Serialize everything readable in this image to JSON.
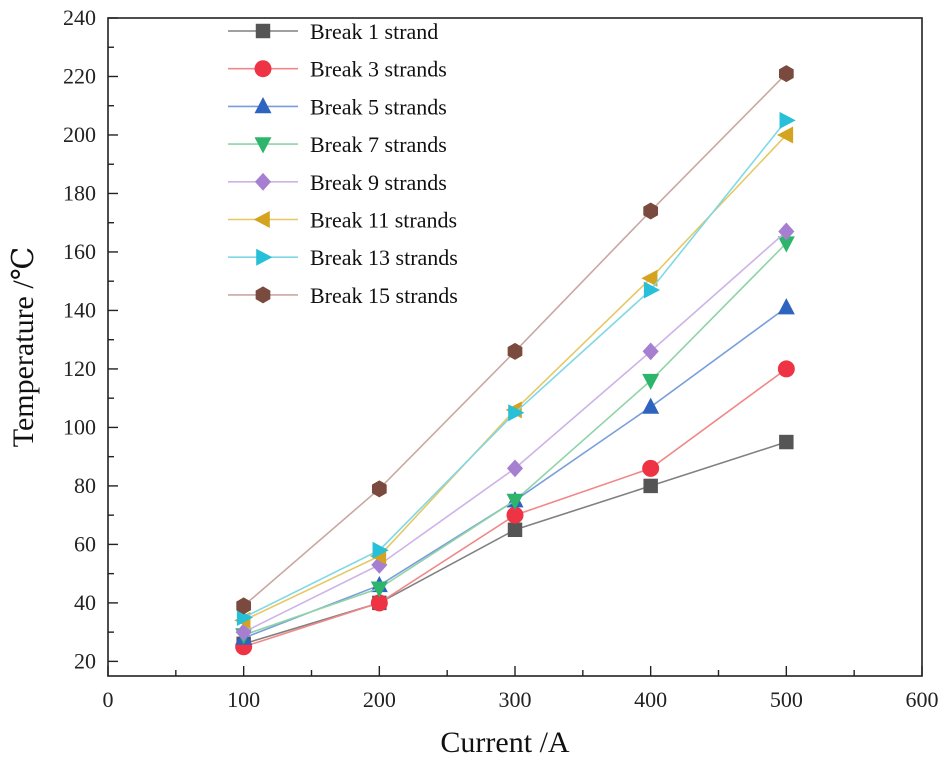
{
  "chart_data": {
    "type": "line",
    "title": "",
    "xlabel": "Current /A",
    "ylabel": "Temperature /℃",
    "xlim": [
      0,
      600
    ],
    "ylim": [
      15,
      240
    ],
    "x_ticks": [
      0,
      100,
      200,
      300,
      400,
      500,
      600
    ],
    "y_ticks": [
      20,
      40,
      60,
      80,
      100,
      120,
      140,
      160,
      180,
      200,
      220,
      240
    ],
    "grid": false,
    "legend_position": "top-left",
    "x": [
      100,
      200,
      300,
      400,
      500
    ],
    "series": [
      {
        "name": "Break 1 strand",
        "marker": "square",
        "color": "#555555",
        "line_color": "#808080",
        "values": [
          26,
          40,
          65,
          80,
          95
        ]
      },
      {
        "name": "Break 3 strands",
        "marker": "circle",
        "color": "#ee3344",
        "line_color": "#f08888",
        "values": [
          25,
          40,
          70,
          86,
          120
        ]
      },
      {
        "name": "Break 5 strands",
        "marker": "triangle-up",
        "color": "#2e63c0",
        "line_color": "#7a9edc",
        "values": [
          28,
          46,
          75,
          107,
          141
        ]
      },
      {
        "name": "Break 7 strands",
        "marker": "triangle-down",
        "color": "#2db56b",
        "line_color": "#8fd4a8",
        "values": [
          29,
          45,
          75,
          116,
          163
        ]
      },
      {
        "name": "Break 9 strands",
        "marker": "diamond",
        "color": "#a77fd0",
        "line_color": "#cdb3e6",
        "values": [
          30,
          53,
          86,
          126,
          167
        ]
      },
      {
        "name": "Break 11 strands",
        "marker": "triangle-left",
        "color": "#d4a320",
        "line_color": "#e6c864",
        "values": [
          34,
          56,
          106,
          151,
          200
        ]
      },
      {
        "name": "Break 13 strands",
        "marker": "triangle-right",
        "color": "#27c0d8",
        "line_color": "#7fd8e6",
        "values": [
          35,
          58,
          105,
          147,
          205
        ]
      },
      {
        "name": "Break 15 strands",
        "marker": "hexagon",
        "color": "#7a4a3e",
        "line_color": "#c9a8a2",
        "values": [
          39,
          79,
          126,
          174,
          221
        ]
      }
    ]
  }
}
